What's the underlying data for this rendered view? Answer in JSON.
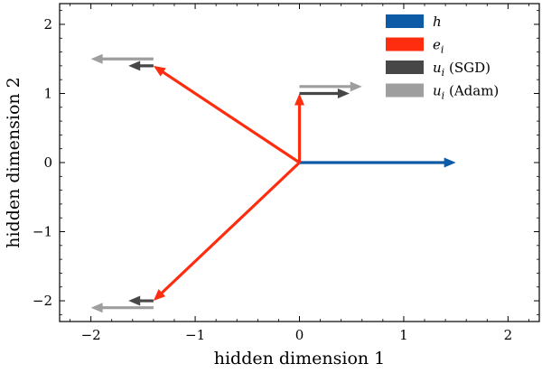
{
  "chart_data": {
    "type": "vector",
    "xlabel": "hidden dimension 1",
    "ylabel": "hidden dimension 2",
    "xlim": [
      -2.3,
      2.3
    ],
    "ylim": [
      -2.3,
      2.3
    ],
    "xticks": [
      -2,
      -1,
      0,
      1,
      2
    ],
    "yticks": [
      -2,
      -1,
      0,
      1,
      2
    ],
    "xtick_labels": [
      "−2",
      "−1",
      "0",
      "1",
      "2"
    ],
    "ytick_labels": [
      "−2",
      "−1",
      "0",
      "1",
      "2"
    ],
    "grid": false,
    "legend_position": "top-right",
    "series": [
      {
        "name": "h",
        "italic_name": "h",
        "suffix": "",
        "color": "#0d5aa7",
        "vectors": [
          {
            "x0": 0,
            "y0": 0,
            "dx": 1.5,
            "dy": 0
          }
        ]
      },
      {
        "name": "e_i",
        "italic_name": "e",
        "subscript": "i",
        "suffix": "",
        "color": "#ff2d0f",
        "vectors": [
          {
            "x0": 0,
            "y0": 0,
            "dx": 0,
            "dy": 1.0
          },
          {
            "x0": 0,
            "y0": 0,
            "dx": -1.4,
            "dy": 1.4
          },
          {
            "x0": 0,
            "y0": 0,
            "dx": -1.4,
            "dy": -2.0
          }
        ]
      },
      {
        "name": "u_i (SGD)",
        "italic_name": "u",
        "subscript": "i",
        "suffix": " (SGD)",
        "color": "#474747",
        "vectors": [
          {
            "x0": 0,
            "y0": 1.0,
            "dx": 0.48,
            "dy": 0
          },
          {
            "x0": -1.4,
            "y0": 1.4,
            "dx": -0.24,
            "dy": 0
          },
          {
            "x0": -1.4,
            "y0": -2.0,
            "dx": -0.24,
            "dy": 0
          }
        ]
      },
      {
        "name": "u_i (Adam)",
        "italic_name": "u",
        "subscript": "i",
        "suffix": " (Adam)",
        "color": "#9e9e9e",
        "vectors": [
          {
            "x0": 0,
            "y0": 1.1,
            "dx": 0.6,
            "dy": 0
          },
          {
            "x0": -1.4,
            "y0": 1.5,
            "dx": -0.6,
            "dy": 0
          },
          {
            "x0": -1.4,
            "y0": -2.1,
            "dx": -0.6,
            "dy": 0
          }
        ]
      }
    ]
  }
}
